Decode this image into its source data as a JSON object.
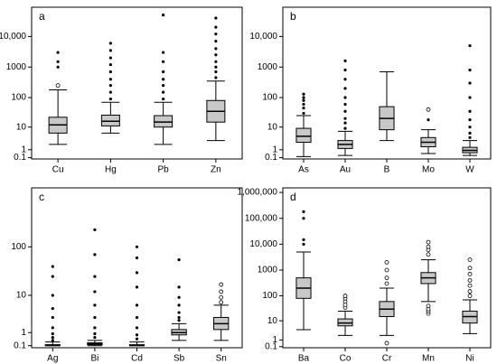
{
  "chart_data": [
    {
      "type": "box",
      "title": "a",
      "scale": "log1p",
      "color": "#c8c8c8",
      "ylim": [
        0,
        90000
      ],
      "yticks": [
        0.1,
        1,
        10,
        100,
        1000,
        {
          "value": 10000,
          "label": "10,000"
        }
      ],
      "categories": [
        "Cu",
        "Hg",
        "Pb",
        "Zn"
      ],
      "boxes": [
        {
          "low": 2,
          "q1": 6,
          "median": 12,
          "q3": 22,
          "high": 180,
          "outliers": [
            250
          ],
          "extremes": [
            1000,
            1500,
            3000
          ]
        },
        {
          "low": 6,
          "q1": 11,
          "median": 16,
          "q3": 26,
          "high": 70,
          "outliers": [],
          "extremes": [
            90,
            150,
            250,
            400,
            700,
            1200,
            2000,
            3500,
            6000
          ]
        },
        {
          "low": 2,
          "q1": 10,
          "median": 15,
          "q3": 25,
          "high": 70,
          "outliers": [],
          "extremes": [
            90,
            150,
            250,
            400,
            700,
            1500,
            3000,
            50000
          ]
        },
        {
          "low": 3,
          "q1": 15,
          "median": 35,
          "q3": 80,
          "high": 350,
          "outliers": [],
          "extremes": [
            450,
            700,
            1000,
            1500,
            2500,
            4000,
            7000,
            12000,
            20000,
            40000
          ]
        }
      ]
    },
    {
      "type": "box",
      "title": "b",
      "scale": "log1p",
      "color": "#c8c8c8",
      "ylim": [
        0,
        90000
      ],
      "yticks": [
        0.1,
        1,
        10,
        100,
        1000,
        {
          "value": 10000,
          "label": "10,000"
        }
      ],
      "categories": [
        "As",
        "Au",
        "B",
        "Mo",
        "W"
      ],
      "boxes": [
        {
          "low": 0.2,
          "q1": 2.5,
          "median": 4.5,
          "q3": 9,
          "high": 25,
          "outliers": [],
          "extremes": [
            30,
            45,
            60,
            80,
            100,
            130
          ]
        },
        {
          "low": 0.3,
          "q1": 1.2,
          "median": 2,
          "q3": 3,
          "high": 7,
          "outliers": [],
          "extremes": [
            9,
            14,
            20,
            35,
            60,
            100,
            200,
            400,
            800,
            1600
          ]
        },
        {
          "low": 3,
          "q1": 8,
          "median": 20,
          "q3": 50,
          "high": 700,
          "outliers": [],
          "extremes": []
        },
        {
          "low": 0.5,
          "q1": 1.5,
          "median": 2.5,
          "q3": 4,
          "high": 8,
          "outliers": [
            40
          ],
          "extremes": [
            18
          ]
        },
        {
          "low": 0.3,
          "q1": 0.6,
          "median": 0.9,
          "q3": 1.4,
          "high": 3,
          "outliers": [],
          "extremes": [
            4,
            6,
            10,
            18,
            35,
            100,
            300,
            800,
            5000
          ]
        }
      ]
    },
    {
      "type": "box",
      "title": "c",
      "scale": "log1p",
      "color": "#c8c8c8",
      "ylim": [
        0,
        1500
      ],
      "yticks": [
        0.1,
        1,
        10,
        100
      ],
      "categories": [
        "Ag",
        "Bi",
        "Cd",
        "Sb",
        "Sn"
      ],
      "boxes": [
        {
          "low": 0.1,
          "q1": 0.1,
          "median": 0.12,
          "q3": 0.15,
          "high": 0.3,
          "outliers": [],
          "extremes": [
            0.4,
            0.6,
            0.9,
            1.5,
            3,
            5,
            10,
            25,
            40
          ]
        },
        {
          "low": 0.1,
          "q1": 0.15,
          "median": 0.2,
          "q3": 0.25,
          "high": 0.4,
          "outliers": [],
          "extremes": [
            0.6,
            0.9,
            1.5,
            3,
            6,
            12,
            25,
            70,
            220
          ]
        },
        {
          "low": 0.1,
          "q1": 0.1,
          "median": 0.12,
          "q3": 0.15,
          "high": 0.3,
          "outliers": [],
          "extremes": [
            0.5,
            0.8,
            1.5,
            3,
            6,
            15,
            30,
            60,
            100
          ]
        },
        {
          "low": 0.4,
          "q1": 0.8,
          "median": 1,
          "q3": 1.3,
          "high": 2,
          "outliers": [],
          "extremes": [
            2.5,
            3,
            4,
            6,
            9,
            15,
            55
          ]
        },
        {
          "low": 0.4,
          "q1": 1.3,
          "median": 2,
          "q3": 3,
          "high": 6,
          "outliers": [
            7,
            9,
            12,
            17
          ],
          "extremes": []
        }
      ]
    },
    {
      "type": "box",
      "title": "d",
      "scale": "log1p",
      "color": "#c8c8c8",
      "ylim": [
        0,
        1500000
      ],
      "yticks": [
        0.1,
        1,
        10,
        100,
        1000,
        {
          "value": 10000,
          "label": "10,000"
        },
        {
          "value": 100000,
          "label": "100,000"
        },
        {
          "value": 1000000,
          "label": "1,000,000"
        }
      ],
      "categories": [
        "Ba",
        "Co",
        "Cr",
        "Mn",
        "Ni"
      ],
      "boxes": [
        {
          "low": 4,
          "q1": 80,
          "median": 200,
          "q3": 500,
          "high": 5000,
          "outliers": [],
          "extremes": [
            10000,
            15000,
            100000,
            180000
          ]
        },
        {
          "low": 2,
          "q1": 6,
          "median": 8,
          "q3": 12,
          "high": 25,
          "outliers": [
            35,
            45,
            60,
            80,
            100
          ],
          "extremes": []
        },
        {
          "low": 2,
          "q1": 15,
          "median": 30,
          "q3": 60,
          "high": 200,
          "outliers": [
            0.5,
            300,
            500,
            1000,
            2000
          ],
          "extremes": []
        },
        {
          "low": 60,
          "q1": 300,
          "median": 500,
          "q3": 800,
          "high": 2500,
          "outliers": [
            20,
            25,
            30,
            40,
            4000,
            6000,
            8000,
            12000
          ],
          "extremes": []
        },
        {
          "low": 2.5,
          "q1": 8,
          "median": 15,
          "q3": 25,
          "high": 70,
          "outliers": [
            100,
            150,
            250,
            400,
            700,
            1200,
            2500
          ],
          "extremes": []
        }
      ]
    }
  ]
}
